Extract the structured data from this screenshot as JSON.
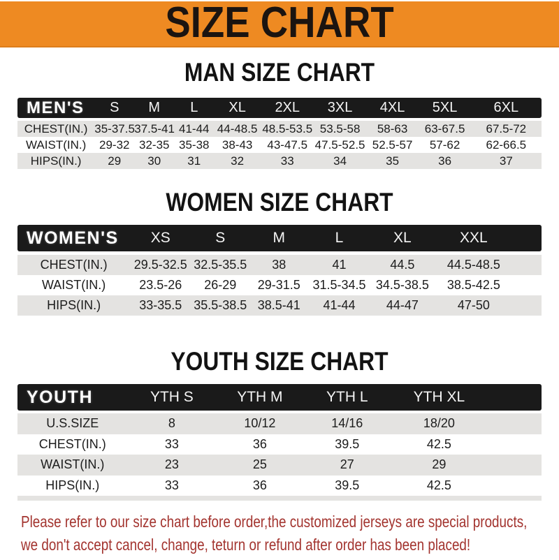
{
  "banner": {
    "title": "SIZE CHART",
    "bg_color": "#EE8A22",
    "text_color": "#1B1410"
  },
  "sections": [
    {
      "heading": "MAN SIZE CHART",
      "table": {
        "label": "MEN'S",
        "columns": [
          "S",
          "M",
          "L",
          "XL",
          "2XL",
          "3XL",
          "4XL",
          "5XL",
          "6XL"
        ],
        "rows": [
          {
            "label": "CHEST(IN.)",
            "values": [
              "35-37.5",
              "37.5-41",
              "41-44",
              "44-48.5",
              "48.5-53.5",
              "53.5-58",
              "58-63",
              "63-67.5",
              "67.5-72"
            ]
          },
          {
            "label": "WAIST(IN.)",
            "values": [
              "29-32",
              "32-35",
              "35-38",
              "38-43",
              "43-47.5",
              "47.5-52.5",
              "52.5-57",
              "57-62",
              "62-66.5"
            ]
          },
          {
            "label": "HIPS(IN.)",
            "values": [
              "29",
              "30",
              "31",
              "32",
              "33",
              "34",
              "35",
              "36",
              "37"
            ]
          }
        ]
      }
    },
    {
      "heading": "WOMEN SIZE CHART",
      "table": {
        "label": "WOMEN'S",
        "columns": [
          "XS",
          "S",
          "M",
          "L",
          "XL",
          "XXL"
        ],
        "rows": [
          {
            "label": "CHEST(IN.)",
            "values": [
              "29.5-32.5",
              "32.5-35.5",
              "38",
              "41",
              "44.5",
              "44.5-48.5"
            ]
          },
          {
            "label": "WAIST(IN.)",
            "values": [
              "23.5-26",
              "26-29",
              "29-31.5",
              "31.5-34.5",
              "34.5-38.5",
              "38.5-42.5"
            ]
          },
          {
            "label": "HIPS(IN.)",
            "values": [
              "33-35.5",
              "35.5-38.5",
              "38.5-41",
              "41-44",
              "44-47",
              "47-50"
            ]
          }
        ]
      }
    },
    {
      "heading": "YOUTH SIZE CHART",
      "table": {
        "label": "YOUTH",
        "columns": [
          "YTH S",
          "YTH M",
          "YTH L",
          "YTH XL"
        ],
        "rows": [
          {
            "label": "U.S.SIZE",
            "values": [
              "8",
              "10/12",
              "14/16",
              "18/20"
            ]
          },
          {
            "label": "CHEST(IN.)",
            "values": [
              "33",
              "36",
              "39.5",
              "42.5"
            ]
          },
          {
            "label": "WAIST(IN.)",
            "values": [
              "23",
              "25",
              "27",
              "29"
            ]
          },
          {
            "label": "HIPS(IN.)",
            "values": [
              "33",
              "36",
              "39.5",
              "42.5"
            ]
          }
        ]
      }
    }
  ],
  "footer": {
    "line1": "Please refer to our size chart before order,the customized jerseys are special products,",
    "line2": "we don't accept cancel, change, teturn or refund after order has been placed!",
    "text_color": "#A3342F"
  },
  "colors": {
    "banner_orange": "#EE8A22",
    "table_header_black": "#1A1A1A",
    "row_gray": "#E4E3E1",
    "body_text": "#1C1C1C",
    "footer_red": "#A3342F"
  }
}
